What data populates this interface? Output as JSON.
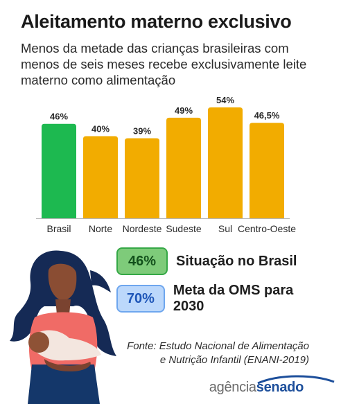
{
  "title": "Aleitamento materno exclusivo",
  "subtitle_lines": [
    "Menos da metade das crianças brasileiras com",
    "menos de seis meses recebe exclusivamente leite",
    "materno como alimentação"
  ],
  "chart_data": {
    "type": "bar",
    "categories": [
      "Brasil",
      "Norte",
      "Nordeste",
      "Sudeste",
      "Sul",
      "Centro-Oeste"
    ],
    "values": [
      46,
      40,
      39,
      49,
      54,
      46.5
    ],
    "value_labels": [
      "46%",
      "40%",
      "39%",
      "49%",
      "54%",
      "46,5%"
    ],
    "colors": [
      "#1db950",
      "#f2ac00",
      "#f2ac00",
      "#f2ac00",
      "#f2ac00",
      "#f2ac00"
    ],
    "ylim": [
      0,
      54
    ],
    "grid": false
  },
  "legend": [
    {
      "value": "46%",
      "label": "Situação no Brasil",
      "color": "#7ecb7a"
    },
    {
      "value": "70%",
      "label": "Meta da OMS para 2030",
      "color": "#bcd8fb"
    }
  ],
  "source_lines": [
    "Fonte: Estudo Nacional de Alimentação",
    "e Nutrição Infantil (ENANI-2019)"
  ],
  "logo": {
    "part1": "agência",
    "part2": "senado"
  },
  "colors": {
    "accent_green": "#1db950",
    "bar_orange": "#f2ac00",
    "brand_blue": "#1d4f9b"
  },
  "illustration": "mother-breastfeeding-baby"
}
